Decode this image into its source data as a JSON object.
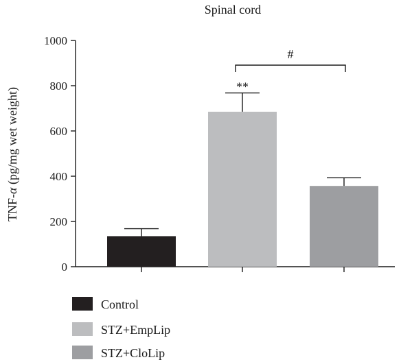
{
  "chart_data": {
    "type": "bar",
    "title": "Spinal cord",
    "ylabel": "TNF-α (pg/mg wet weight)",
    "xlabel": "",
    "ylim": [
      0,
      1000
    ],
    "yticks": [
      0,
      200,
      400,
      600,
      800,
      1000
    ],
    "grid": false,
    "categories": [
      "Control",
      "STZ+EmpLip",
      "STZ+CloLip"
    ],
    "values": [
      135,
      685,
      357
    ],
    "errors": [
      33,
      83,
      36
    ],
    "colors": [
      "#231f20",
      "#bcbdbf",
      "#9d9ea1"
    ],
    "annotations": {
      "significance_bar2": "**",
      "bracket_2_3": "#"
    },
    "legend": {
      "position": "bottom-left",
      "entries": [
        "Control",
        "STZ+EmpLip",
        "STZ+CloLip"
      ]
    }
  }
}
